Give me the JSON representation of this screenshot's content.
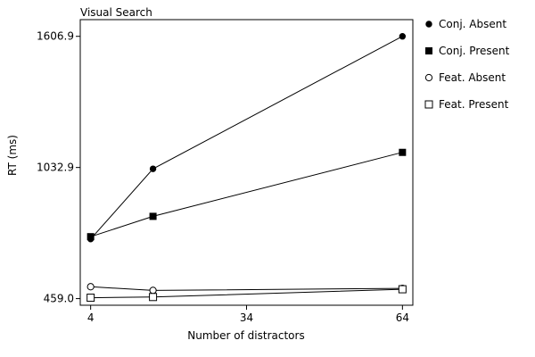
{
  "chart_data": {
    "type": "line",
    "title": "Visual Search",
    "xlabel": "Number of distractors",
    "ylabel": "RT (ms)",
    "x_ticks": [
      4,
      34,
      64
    ],
    "y_ticks": [
      459.0,
      1032.9,
      1606.9
    ],
    "x_tick_labels": [
      "4",
      "34",
      "64"
    ],
    "y_tick_labels": [
      "459.0",
      "1032.9",
      "1606.9"
    ],
    "xlim": [
      2,
      66
    ],
    "ylim": [
      430,
      1680
    ],
    "grid": false,
    "legend_position": "right",
    "series": [
      {
        "name": "Conj. Absent",
        "marker": "filled-circle",
        "x": [
          4,
          16,
          64
        ],
        "y": [
          720,
          1027,
          1606.9
        ]
      },
      {
        "name": "Conj. Present",
        "marker": "filled-square",
        "x": [
          4,
          16,
          64
        ],
        "y": [
          730,
          819,
          1099
        ]
      },
      {
        "name": "Feat. Absent",
        "marker": "open-circle",
        "x": [
          4,
          16,
          64
        ],
        "y": [
          511,
          495,
          504
        ]
      },
      {
        "name": "Feat. Present",
        "marker": "open-square",
        "x": [
          4,
          16,
          64
        ],
        "y": [
          463,
          466,
          500
        ]
      }
    ]
  }
}
